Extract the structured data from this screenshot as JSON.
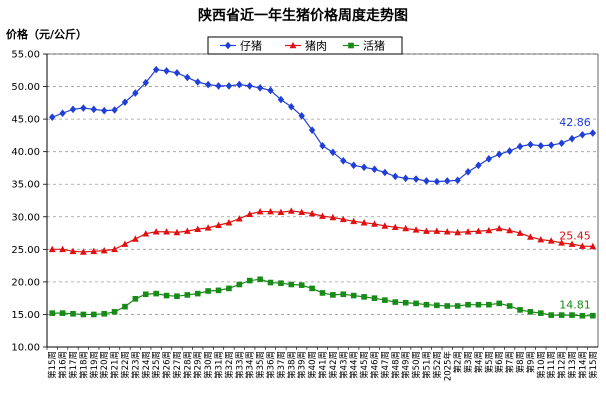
{
  "chart_data": {
    "type": "line",
    "title": "陕西省近一年生猪价格周度走势图",
    "ylabel": "价格（元/公斤）",
    "ylim": [
      10,
      55
    ],
    "yticks": [
      "10.00",
      "15.00",
      "20.00",
      "25.00",
      "30.00",
      "35.00",
      "40.00",
      "45.00",
      "50.00",
      "55.00"
    ],
    "grid": true,
    "legend_position": "top",
    "categories": [
      "第15周",
      "第16周",
      "第17周",
      "第18周",
      "第19周",
      "第20周",
      "第21周",
      "第22周",
      "第23周",
      "第24周",
      "第25周",
      "第26周",
      "第27周",
      "第28周",
      "第29周",
      "第30周",
      "第31周",
      "第32周",
      "第33周",
      "第34周",
      "第35周",
      "第36周",
      "第37周",
      "第38周",
      "第39周",
      "第40周",
      "第41周",
      "第42周",
      "第43周",
      "第44周",
      "第45周",
      "第46周",
      "第47周",
      "第48周",
      "第49周",
      "第50周",
      "第51周",
      "第52周",
      "2025年",
      "第2周",
      "第3周",
      "第4周",
      "第5周",
      "第6周",
      "第7周",
      "第8周",
      "第9周",
      "第10周",
      "第11周",
      "第12周",
      "第13周",
      "第14周",
      "第15周"
    ],
    "series": [
      {
        "name": "仔猪",
        "color": "#1f3fd6",
        "marker": "diamond",
        "end_label": "42.86",
        "values": [
          45.3,
          45.9,
          46.5,
          46.7,
          46.5,
          46.3,
          46.4,
          47.6,
          49.0,
          50.6,
          52.6,
          52.4,
          52.1,
          51.4,
          50.7,
          50.3,
          50.1,
          50.1,
          50.3,
          50.1,
          49.8,
          49.4,
          48.0,
          46.9,
          45.5,
          43.3,
          40.9,
          39.9,
          38.6,
          37.9,
          37.6,
          37.3,
          36.8,
          36.2,
          35.9,
          35.8,
          35.5,
          35.4,
          35.5,
          35.6,
          36.9,
          37.9,
          38.9,
          39.6,
          40.1,
          40.8,
          41.1,
          40.9,
          41.0,
          41.3,
          42.0,
          42.6,
          42.86
        ]
      },
      {
        "name": "猪肉",
        "color": "#e01010",
        "marker": "triangle",
        "end_label": "25.45",
        "values": [
          25.0,
          25.0,
          24.7,
          24.6,
          24.7,
          24.8,
          25.0,
          25.8,
          26.6,
          27.4,
          27.7,
          27.7,
          27.6,
          27.8,
          28.1,
          28.3,
          28.7,
          29.1,
          29.7,
          30.4,
          30.8,
          30.8,
          30.7,
          30.9,
          30.7,
          30.5,
          30.1,
          29.9,
          29.6,
          29.3,
          29.1,
          28.9,
          28.6,
          28.4,
          28.2,
          28.0,
          27.8,
          27.8,
          27.7,
          27.6,
          27.7,
          27.8,
          27.9,
          28.2,
          27.9,
          27.5,
          26.9,
          26.5,
          26.3,
          26.0,
          25.8,
          25.5,
          25.45
        ]
      },
      {
        "name": "活猪",
        "color": "#178a17",
        "marker": "square",
        "end_label": "14.81",
        "values": [
          15.2,
          15.2,
          15.1,
          15.0,
          15.0,
          15.1,
          15.4,
          16.2,
          17.4,
          18.1,
          18.2,
          17.9,
          17.8,
          18.0,
          18.2,
          18.6,
          18.7,
          19.0,
          19.6,
          20.2,
          20.4,
          19.9,
          19.8,
          19.6,
          19.5,
          19.0,
          18.3,
          18.0,
          18.1,
          17.9,
          17.7,
          17.5,
          17.2,
          16.9,
          16.8,
          16.7,
          16.5,
          16.4,
          16.3,
          16.3,
          16.5,
          16.5,
          16.5,
          16.7,
          16.3,
          15.7,
          15.4,
          15.2,
          14.9,
          14.9,
          14.9,
          14.8,
          14.81
        ]
      }
    ]
  }
}
